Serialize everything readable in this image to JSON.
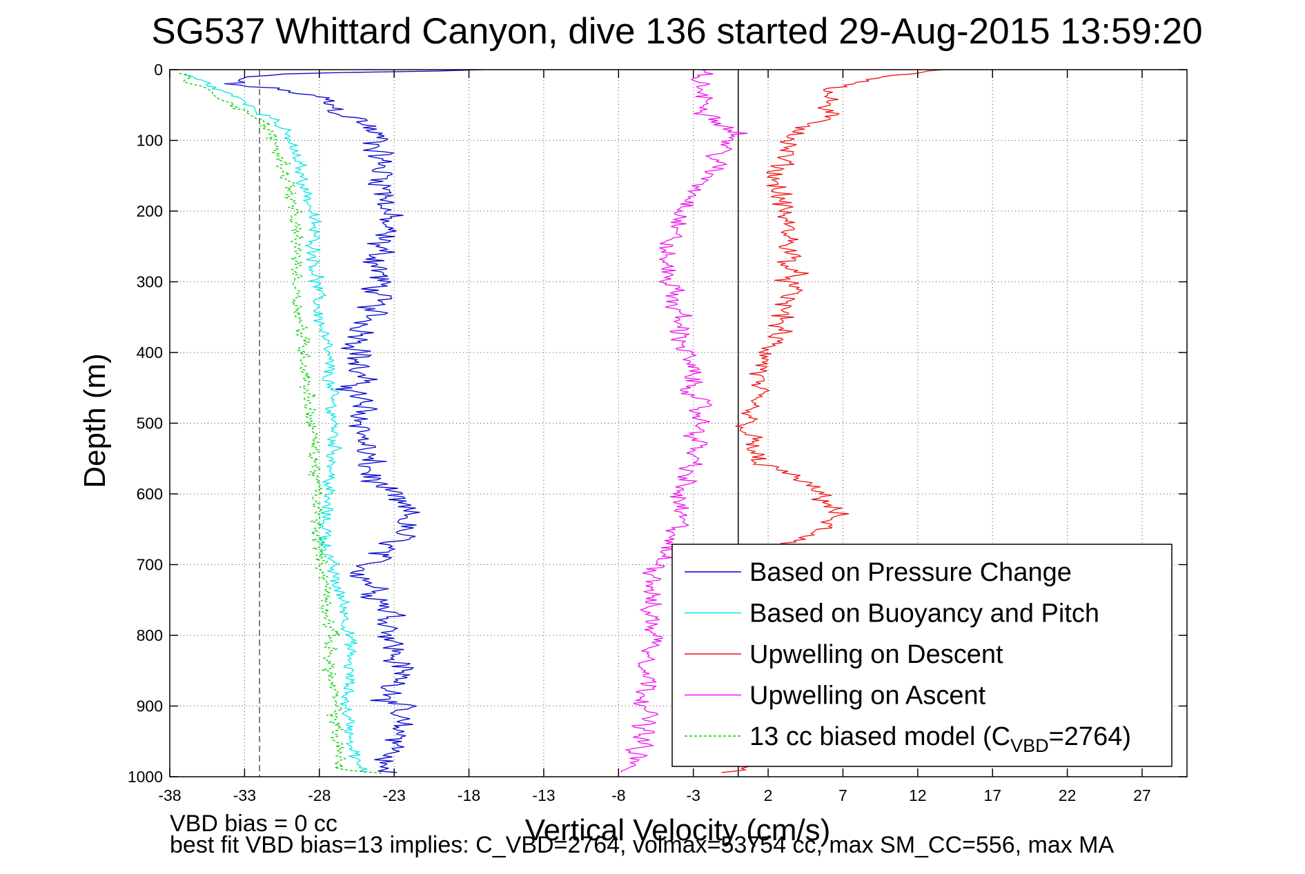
{
  "chart_data": {
    "type": "line",
    "title": "SG537 Whittard Canyon, dive 136 started 29-Aug-2015 13:59:20",
    "xlabel": "Vertical Velocity (cm/s)",
    "ylabel": "Depth (m)",
    "xlim": [
      -38,
      30
    ],
    "ylim": [
      1000,
      0
    ],
    "y_reversed": true,
    "xticks": [
      -38,
      -33,
      -28,
      -23,
      -18,
      -13,
      -8,
      -3,
      2,
      7,
      12,
      17,
      22,
      27
    ],
    "yticks": [
      0,
      100,
      200,
      300,
      400,
      500,
      600,
      700,
      800,
      900,
      1000
    ],
    "grid": true,
    "grid_style": "dotted",
    "legend_position": "bottom-right",
    "reference_lines": [
      {
        "name": "zero",
        "x": 0,
        "style": "solid",
        "color": "#000000"
      },
      {
        "name": "bias marker",
        "x": -32,
        "style": "dashed",
        "color": "#555555"
      }
    ],
    "series": [
      {
        "name": "Based on Pressure Change",
        "color": "#0000cc",
        "style": "solid",
        "noise": 1.3,
        "points": [
          [
            -17,
            0
          ],
          [
            -21,
            2
          ],
          [
            -30,
            5
          ],
          [
            -33,
            10
          ],
          [
            -34,
            20
          ],
          [
            -30,
            30
          ],
          [
            -28,
            40
          ],
          [
            -27,
            55
          ],
          [
            -25,
            75
          ],
          [
            -24,
            100
          ],
          [
            -24,
            130
          ],
          [
            -23.5,
            160
          ],
          [
            -23.5,
            200
          ],
          [
            -24,
            250
          ],
          [
            -24,
            300
          ],
          [
            -24.5,
            340
          ],
          [
            -25,
            380
          ],
          [
            -25.5,
            420
          ],
          [
            -25.5,
            460
          ],
          [
            -25,
            500
          ],
          [
            -25,
            540
          ],
          [
            -24.5,
            580
          ],
          [
            -23,
            610
          ],
          [
            -22,
            630
          ],
          [
            -22.5,
            650
          ],
          [
            -23,
            670
          ],
          [
            -24.5,
            690
          ],
          [
            -25,
            710
          ],
          [
            -24,
            740
          ],
          [
            -23,
            780
          ],
          [
            -23,
            820
          ],
          [
            -22.5,
            860
          ],
          [
            -23,
            890
          ],
          [
            -23,
            920
          ],
          [
            -22.5,
            950
          ],
          [
            -23.5,
            975
          ],
          [
            -24,
            990
          ],
          [
            -23,
            995
          ]
        ]
      },
      {
        "name": "Based on Buoyancy and Pitch",
        "color": "#00e5e5",
        "style": "solid",
        "noise": 0.55,
        "points": [
          [
            -37,
            5
          ],
          [
            -36,
            15
          ],
          [
            -35,
            25
          ],
          [
            -33,
            45
          ],
          [
            -31,
            70
          ],
          [
            -30,
            100
          ],
          [
            -29.5,
            130
          ],
          [
            -29,
            160
          ],
          [
            -28.5,
            200
          ],
          [
            -28.3,
            250
          ],
          [
            -28.2,
            300
          ],
          [
            -28,
            350
          ],
          [
            -27.5,
            400
          ],
          [
            -27.3,
            450
          ],
          [
            -27,
            500
          ],
          [
            -27,
            550
          ],
          [
            -27.5,
            600
          ],
          [
            -27.6,
            640
          ],
          [
            -27.5,
            680
          ],
          [
            -27,
            720
          ],
          [
            -26.3,
            760
          ],
          [
            -26,
            800
          ],
          [
            -26,
            850
          ],
          [
            -26.2,
            900
          ],
          [
            -25.8,
            950
          ],
          [
            -25.5,
            985
          ],
          [
            -25,
            995
          ]
        ]
      },
      {
        "name": "Upwelling on Descent",
        "color": "#ee1111",
        "style": "solid",
        "noise": 1.0,
        "points": [
          [
            14,
            0
          ],
          [
            10,
            10
          ],
          [
            6,
            30
          ],
          [
            6,
            50
          ],
          [
            5.5,
            70
          ],
          [
            3.5,
            100
          ],
          [
            2.5,
            150
          ],
          [
            3,
            200
          ],
          [
            3.5,
            250
          ],
          [
            3.5,
            300
          ],
          [
            3,
            350
          ],
          [
            2,
            400
          ],
          [
            1,
            450
          ],
          [
            0.5,
            500
          ],
          [
            1,
            550
          ],
          [
            4,
            580
          ],
          [
            6,
            610
          ],
          [
            6.5,
            630
          ],
          [
            5.5,
            650
          ],
          [
            3.5,
            665
          ],
          [
            2.5,
            675
          ],
          [
            0,
            990
          ],
          [
            -2,
            995
          ]
        ]
      },
      {
        "name": "Upwelling on Ascent",
        "color": "#ee11ee",
        "style": "solid",
        "noise": 0.9,
        "points": [
          [
            -2.5,
            0
          ],
          [
            -2.5,
            30
          ],
          [
            -2,
            60
          ],
          [
            0,
            90
          ],
          [
            -1,
            110
          ],
          [
            -2,
            150
          ],
          [
            -3,
            180
          ],
          [
            -4,
            220
          ],
          [
            -5,
            260
          ],
          [
            -4.5,
            300
          ],
          [
            -4,
            350
          ],
          [
            -3.5,
            400
          ],
          [
            -3,
            450
          ],
          [
            -2.5,
            500
          ],
          [
            -3,
            550
          ],
          [
            -4,
            600
          ],
          [
            -4,
            650
          ],
          [
            -5,
            680
          ],
          [
            -5.5,
            720
          ],
          [
            -6,
            760
          ],
          [
            -5.5,
            800
          ],
          [
            -6,
            850
          ],
          [
            -6,
            900
          ],
          [
            -6.5,
            950
          ],
          [
            -7,
            980
          ],
          [
            -8,
            995
          ]
        ]
      },
      {
        "name": "13 cc biased model (C_VBD=2764)",
        "color": "#00cc00",
        "style": "dashed",
        "noise": 0.55,
        "points": [
          [
            -37,
            5
          ],
          [
            -37,
            15
          ],
          [
            -36,
            25
          ],
          [
            -34,
            45
          ],
          [
            -32,
            70
          ],
          [
            -31,
            100
          ],
          [
            -30.5,
            130
          ],
          [
            -30,
            160
          ],
          [
            -29.8,
            200
          ],
          [
            -29.5,
            250
          ],
          [
            -29.5,
            300
          ],
          [
            -29.3,
            350
          ],
          [
            -29,
            400
          ],
          [
            -28.8,
            450
          ],
          [
            -28.5,
            500
          ],
          [
            -28.3,
            550
          ],
          [
            -28.2,
            600
          ],
          [
            -28.2,
            640
          ],
          [
            -28,
            680
          ],
          [
            -27.6,
            720
          ],
          [
            -27.5,
            760
          ],
          [
            -27.2,
            800
          ],
          [
            -27.3,
            850
          ],
          [
            -27,
            900
          ],
          [
            -26.8,
            950
          ],
          [
            -26.5,
            990
          ],
          [
            -24,
            995
          ]
        ]
      }
    ],
    "legend": [
      {
        "label": "Based on Pressure Change",
        "color": "#0000cc",
        "style": "solid"
      },
      {
        "label": "Based on Buoyancy and Pitch",
        "color": "#00e5e5",
        "style": "solid"
      },
      {
        "label": "Upwelling on Descent",
        "color": "#ee1111",
        "style": "solid"
      },
      {
        "label": "Upwelling on Ascent",
        "color": "#ee11ee",
        "style": "solid"
      },
      {
        "label_main": "13 cc biased model (C",
        "label_sub": "VBD",
        "label_end": "=2764)",
        "color": "#00cc00",
        "style": "dashed"
      }
    ]
  },
  "footer": {
    "line1": "VBD bias = 0 cc",
    "line2": "best fit VBD bias=13 implies: C_VBD=2764, volmax=53754 cc, max SM_CC=556, max MA"
  }
}
